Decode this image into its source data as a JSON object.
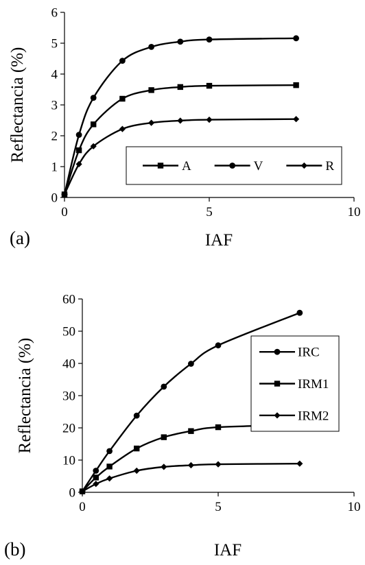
{
  "chart_data": [
    {
      "type": "line",
      "panel_label": "(a)",
      "xlabel": "IAF",
      "ylabel": "Reflectancia (%)",
      "xlim": [
        0,
        10
      ],
      "ylim": [
        0,
        6
      ],
      "x_ticks": [
        0,
        5,
        10
      ],
      "y_ticks": [
        0,
        1,
        2,
        3,
        4,
        5,
        6
      ],
      "grid": false,
      "legend": {
        "placement": "inside-bottom-right",
        "orientation": "horizontal"
      },
      "x": [
        0,
        0.5,
        1,
        2,
        3,
        4,
        5,
        8
      ],
      "series": [
        {
          "name": "A",
          "marker": "square",
          "values": [
            0.1,
            1.53,
            2.37,
            3.2,
            3.48,
            3.58,
            3.62,
            3.64
          ]
        },
        {
          "name": "V",
          "marker": "circle",
          "values": [
            0.1,
            2.03,
            3.23,
            4.43,
            4.88,
            5.05,
            5.12,
            5.16
          ]
        },
        {
          "name": "R",
          "marker": "diamond",
          "values": [
            0.1,
            1.08,
            1.66,
            2.22,
            2.42,
            2.49,
            2.52,
            2.54
          ]
        }
      ]
    },
    {
      "type": "line",
      "panel_label": "(b)",
      "xlabel": "IAF",
      "ylabel": "Reflectancia (%)",
      "xlim": [
        0,
        10
      ],
      "ylim": [
        0,
        60
      ],
      "x_ticks": [
        0,
        5,
        10
      ],
      "y_ticks": [
        0,
        10,
        20,
        30,
        40,
        50,
        60
      ],
      "grid": false,
      "legend": {
        "placement": "right",
        "orientation": "vertical"
      },
      "x": [
        0,
        0.5,
        1,
        2,
        3,
        4,
        5,
        8
      ],
      "series": [
        {
          "name": "IRC",
          "marker": "circle",
          "values": [
            0.3,
            6.7,
            12.8,
            23.8,
            32.8,
            39.9,
            45.6,
            55.7
          ]
        },
        {
          "name": "IRM1",
          "marker": "square",
          "values": [
            0.3,
            4.6,
            8.0,
            13.6,
            17.1,
            19.0,
            20.2,
            21.0
          ]
        },
        {
          "name": "IRM2",
          "marker": "diamond",
          "values": [
            0.3,
            2.6,
            4.3,
            6.7,
            7.9,
            8.4,
            8.7,
            8.9
          ]
        }
      ]
    }
  ]
}
